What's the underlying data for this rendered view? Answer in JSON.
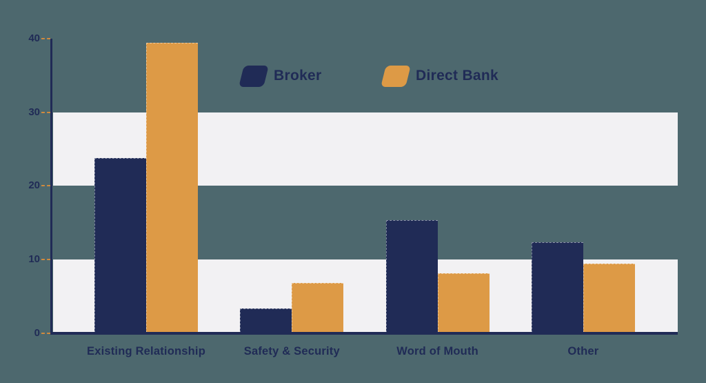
{
  "chart_data": {
    "type": "bar",
    "title": "",
    "xlabel": "",
    "ylabel": "",
    "categories": [
      "Existing Relationship",
      "Safety & Security",
      "Word of Mouth",
      "Other"
    ],
    "series": [
      {
        "name": "Broker",
        "color": "#202B56",
        "values": [
          23.8,
          3.3,
          15.3,
          12.3
        ]
      },
      {
        "name": "Direct Bank",
        "color": "#DD9A46",
        "values": [
          39.4,
          6.8,
          8.1,
          9.4
        ]
      }
    ],
    "ylim": [
      0,
      40
    ],
    "ytick_interval": 10,
    "ytick_labels": [
      "0",
      "10",
      "20",
      "30",
      "40"
    ],
    "grid": "alternating horizontal bands shaded for ranges 0-10 and 20-30",
    "legend_position": "top-center"
  },
  "colors": {
    "background": "#4D686E",
    "band": "#F2F1F3",
    "axis": "#202B56",
    "tick_dash": "#D08A3E",
    "text": "#202B56"
  }
}
